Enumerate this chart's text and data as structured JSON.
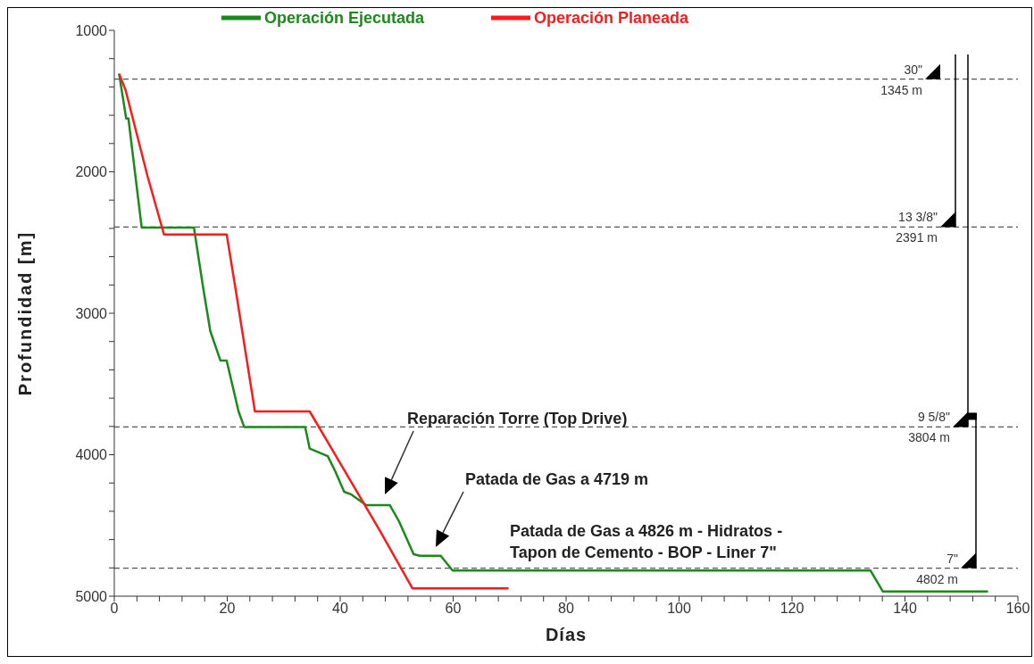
{
  "chart_data": {
    "type": "line",
    "xlabel": "Días",
    "ylabel": "Profundidad [m]",
    "xlim": [
      0,
      160
    ],
    "xticks": [
      0,
      {
        "value": 4,
        "label": null
      },
      {
        "value": 8,
        "label": null
      },
      {
        "value": 12,
        "label": null
      },
      {
        "value": 16,
        "label": null
      },
      20,
      {
        "value": 24,
        "label": null
      },
      {
        "value": 28,
        "label": null
      },
      {
        "value": 32,
        "label": null
      },
      {
        "value": 36,
        "label": null
      },
      40,
      {
        "value": 44,
        "label": null
      },
      {
        "value": 48,
        "label": null
      },
      {
        "value": 52,
        "label": null
      },
      {
        "value": 56,
        "label": null
      },
      60,
      {
        "value": 64,
        "label": null
      },
      {
        "value": 68,
        "label": null
      },
      {
        "value": 72,
        "label": null
      },
      {
        "value": 76,
        "label": null
      },
      80,
      {
        "value": 84,
        "label": null
      },
      {
        "value": 88,
        "label": null
      },
      {
        "value": 92,
        "label": null
      },
      {
        "value": 96,
        "label": null
      },
      100,
      {
        "value": 104,
        "label": null
      },
      {
        "value": 108,
        "label": null
      },
      {
        "value": 112,
        "label": null
      },
      {
        "value": 116,
        "label": null
      },
      120,
      {
        "value": 124,
        "label": null
      },
      {
        "value": 128,
        "label": null
      },
      {
        "value": 132,
        "label": null
      },
      {
        "value": 136,
        "label": null
      },
      140,
      {
        "value": 144,
        "label": null
      },
      {
        "value": 148,
        "label": null
      },
      {
        "value": 152,
        "label": null
      },
      {
        "value": 156,
        "label": null
      },
      160
    ],
    "ylim": [
      5000,
      1000
    ],
    "yticks": [
      1000,
      {
        "value": 1200,
        "label": null
      },
      {
        "value": 1400,
        "label": null
      },
      {
        "value": 1600,
        "label": null
      },
      {
        "value": 1800,
        "label": null
      },
      2000,
      {
        "value": 2200,
        "label": null
      },
      {
        "value": 2400,
        "label": null
      },
      {
        "value": 2600,
        "label": null
      },
      {
        "value": 2800,
        "label": null
      },
      3000,
      {
        "value": 3200,
        "label": null
      },
      {
        "value": 3400,
        "label": null
      },
      {
        "value": 3600,
        "label": null
      },
      {
        "value": 3800,
        "label": null
      },
      4000,
      {
        "value": 4200,
        "label": null
      },
      {
        "value": 4400,
        "label": null
      },
      {
        "value": 4600,
        "label": null
      },
      {
        "value": 4800,
        "label": null
      },
      5000
    ],
    "grid": false,
    "legend": "top",
    "marker": "none",
    "line_style": "solid",
    "series": [
      {
        "name": "Operación Ejecutada",
        "color": "#1a8a1a",
        "x": [
          0.85,
          2.1,
          2.5,
          4.85,
          14.1,
          15.7,
          17,
          18.8,
          19.9,
          22,
          23,
          33.8,
          34.6,
          37.8,
          39.1,
          40.7,
          42,
          44.6,
          48.8,
          50.4,
          53,
          54.1,
          57.8,
          59.9,
          133.9,
          136.1,
          154.7
        ],
        "values": [
          1307,
          1623,
          1623,
          2394,
          2394,
          2811,
          3126,
          3335,
          3335,
          3694,
          3804,
          3804,
          3957,
          4010,
          4115,
          4262,
          4282,
          4357,
          4357,
          4470,
          4703,
          4714,
          4714,
          4819,
          4819,
          4967,
          4967
        ]
      },
      {
        "name": "Operación Planeada",
        "color": "#ff1a1a",
        "x": [
          0.85,
          2,
          5.9,
          8.8,
          19.9,
          21.4,
          24.9,
          34.6,
          47,
          52.8,
          69.8
        ],
        "values": [
          1307,
          1423,
          2033,
          2443,
          2443,
          2811,
          3694,
          3694,
          4535,
          4945,
          4945
        ]
      }
    ],
    "ref_lines": [
      {
        "axis": "y",
        "value": 1345,
        "label": "30\"\n1345 m",
        "color": "#555555",
        "line_style": "dashed"
      },
      {
        "axis": "y",
        "value": 2391,
        "label": "13 3/8\"\n2391 m",
        "color": "#555555",
        "line_style": "dashed"
      },
      {
        "axis": "y",
        "value": 3804,
        "label": "9 5/8\"\n3804 m",
        "color": "#555555",
        "line_style": "dashed"
      },
      {
        "axis": "y",
        "value": 4802,
        "label": "7\"\n4802 m",
        "color": "#555555",
        "line_style": "dashed"
      }
    ],
    "annotations": [
      "Reparación Torre (Top Drive)",
      "Patada de Gas a 4719 m",
      "Patada de Gas a 4826 m - Hidratos -\nTapon de Cemento - BOP - Liner 7\""
    ]
  }
}
